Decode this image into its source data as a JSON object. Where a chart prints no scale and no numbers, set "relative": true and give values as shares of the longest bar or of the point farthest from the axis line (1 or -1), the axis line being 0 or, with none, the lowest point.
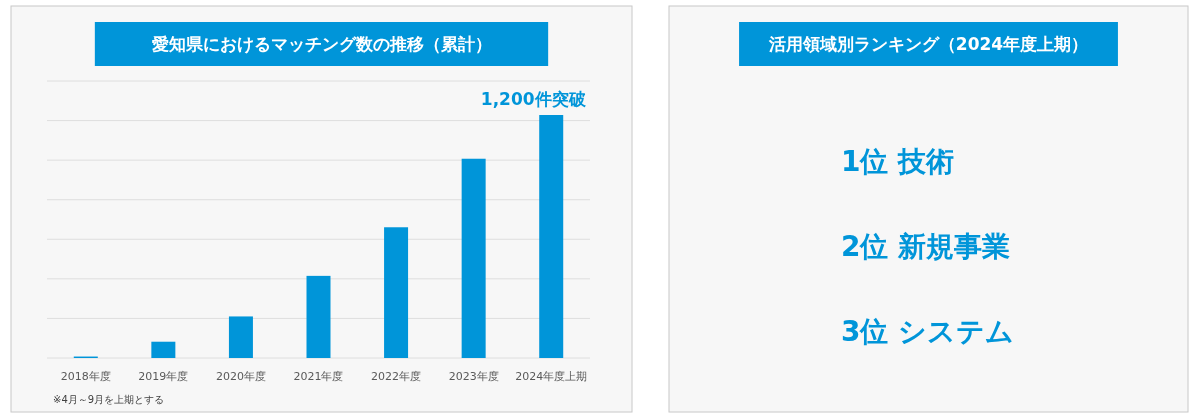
{
  "chart_data": [
    {
      "type": "bar",
      "title": "愛知県におけるマッチング数の推移（累計）",
      "relative": true,
      "grid": "y",
      "categories": [
        "2018年度",
        "2019年度",
        "2020年度",
        "2021年度",
        "2022年度",
        "2023年度",
        "2024年度上期"
      ],
      "values": [
        0.006,
        0.067,
        0.171,
        0.338,
        0.538,
        0.82,
        1
      ],
      "color": "#0095d9",
      "annotations": [
        {
          "text": "1,200件突破",
          "x": "2024年度上期",
          "y": 1
        },
        "※4月～9月を上期とする"
      ]
    },
    {
      "type": "other",
      "title": "活用領域別ランキング（2024年度上期）",
      "annotations": [
        "1位 技術",
        "2位 新規事業",
        "3位 システム"
      ]
    }
  ]
}
